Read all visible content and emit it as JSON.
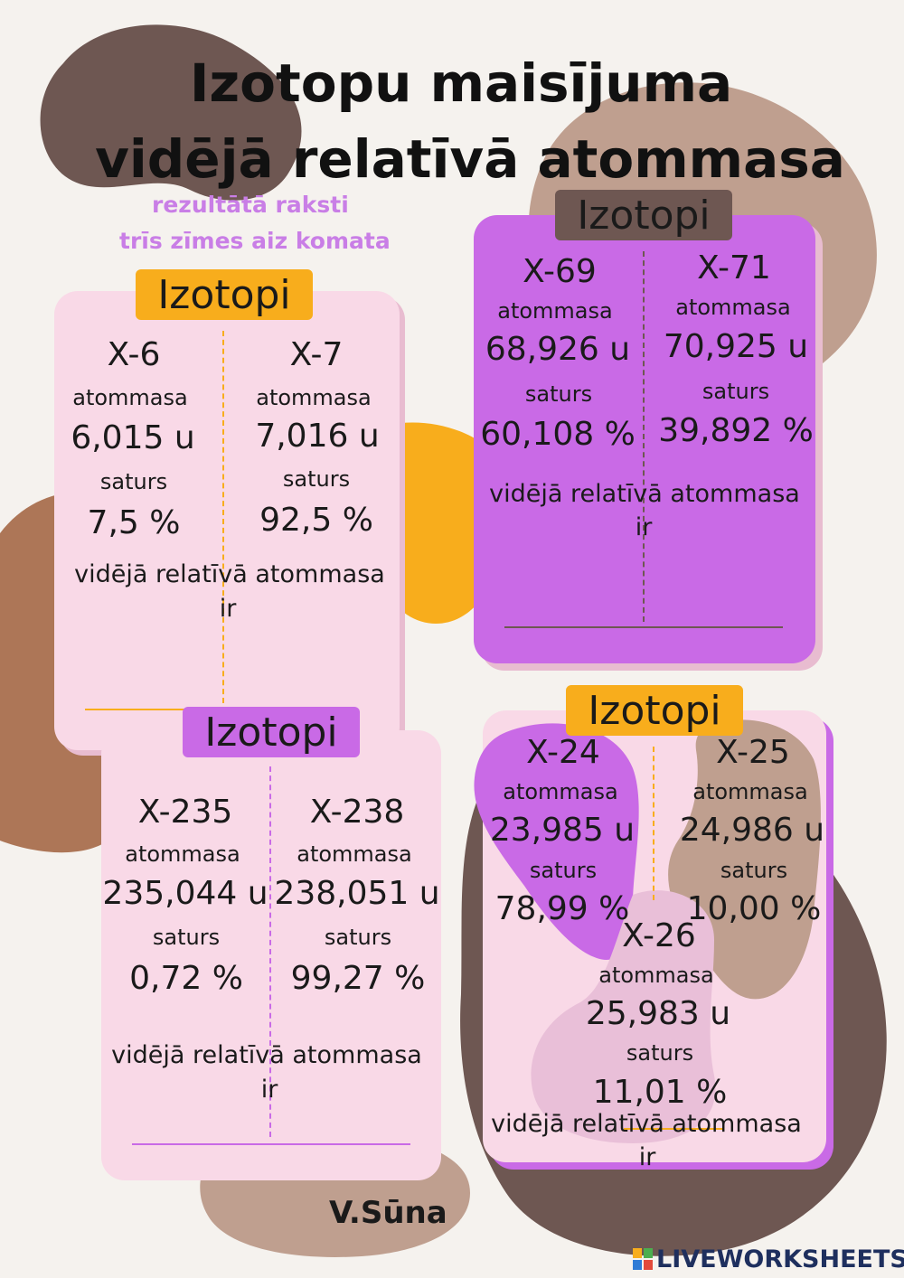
{
  "title": {
    "line1": "Izotopu maisījuma",
    "line2": "vidējā relatīvā atommasa"
  },
  "note": {
    "line1": "rezultātā raksti",
    "line2": "trīs zīmes aiz komata"
  },
  "colors": {
    "background": "#f5f2ee",
    "card_pink": "#f9d9e7",
    "card_purple": "#c96ae6",
    "orange": "#f8ad1c",
    "dark_brown": "#6e5752",
    "light_brown": "#bf9f8f",
    "rust": "#ad7657"
  },
  "cards": [
    {
      "tab": "Izotopi",
      "isotopes": [
        {
          "name": "X-6",
          "mass_label": "atommasa",
          "mass": "6,015 u",
          "content_label": "saturs",
          "content": "7,5 %"
        },
        {
          "name": "X-7",
          "mass_label": "atommasa",
          "mass": "7,016 u",
          "content_label": "saturs",
          "content": "92,5 %"
        }
      ],
      "footer_line1": "vidējā relatīvā atommasa",
      "footer_line2": "ir"
    },
    {
      "tab": "Izotopi",
      "isotopes": [
        {
          "name": "X-69",
          "mass_label": "atommasa",
          "mass": "68,926 u",
          "content_label": "saturs",
          "content": "60,108 %"
        },
        {
          "name": "X-71",
          "mass_label": "atommasa",
          "mass": "70,925 u",
          "content_label": "saturs",
          "content": "39,892 %"
        }
      ],
      "footer_line1": "vidējā relatīvā atommasa",
      "footer_line2": "ir"
    },
    {
      "tab": "Izotopi",
      "isotopes": [
        {
          "name": "X-235",
          "mass_label": "atommasa",
          "mass": "235,044 u",
          "content_label": "saturs",
          "content": "0,72 %"
        },
        {
          "name": "X-238",
          "mass_label": "atommasa",
          "mass": "238,051 u",
          "content_label": "saturs",
          "content": "99,27 %"
        }
      ],
      "footer_line1": "vidējā relatīvā atommasa",
      "footer_line2": "ir"
    },
    {
      "tab": "Izotopi",
      "isotopes": [
        {
          "name": "X-24",
          "mass_label": "atommasa",
          "mass": "23,985 u",
          "content_label": "saturs",
          "content": "78,99 %"
        },
        {
          "name": "X-25",
          "mass_label": "atommasa",
          "mass": "24,986 u",
          "content_label": "saturs",
          "content": "10,00 %"
        },
        {
          "name": "X-26",
          "mass_label": "atommasa",
          "mass": "25,983 u",
          "content_label": "saturs",
          "content": "11,01 %"
        }
      ],
      "footer_line1": "vidējā relatīvā atommasa",
      "footer_line2": "ir"
    }
  ],
  "author": "V.Sūna",
  "brand": "LIVEWORKSHEETS",
  "brand_icon": "liveworksheets-logo-icon"
}
